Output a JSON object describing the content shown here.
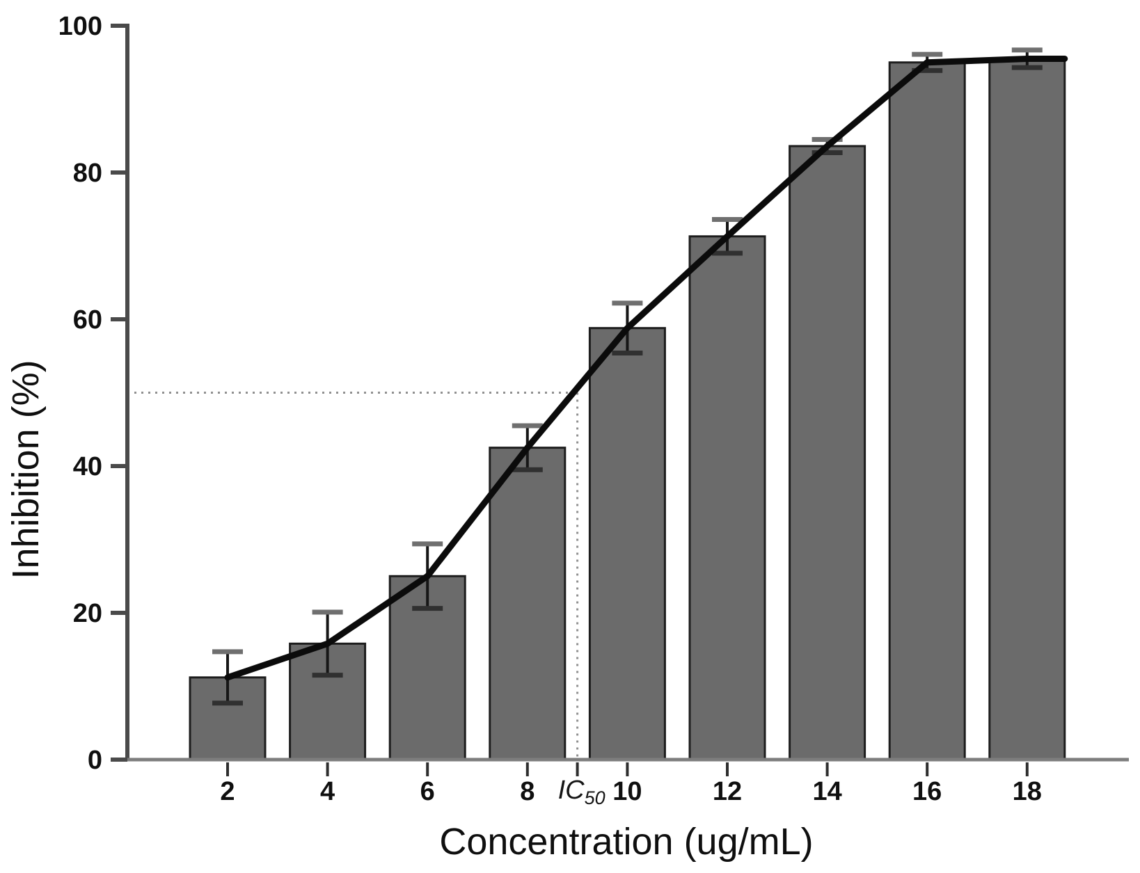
{
  "figure": {
    "xlabel": "Concentration (ug/mL)",
    "ylabel": "Inhibition (%)",
    "ic50_label": {
      "base": "IC",
      "sub": "50"
    }
  },
  "chart_data": {
    "type": "bar",
    "title": "",
    "xlabel": "Concentration (ug/mL)",
    "ylabel": "Inhibition (%)",
    "categories": [
      "2",
      "4",
      "6",
      "8",
      "10",
      "12",
      "14",
      "16",
      "18"
    ],
    "values": [
      11.2,
      15.8,
      25.0,
      42.5,
      58.8,
      71.3,
      83.6,
      95.0,
      95.5
    ],
    "error_bars": [
      3.5,
      4.3,
      4.4,
      3.0,
      3.4,
      2.3,
      0.9,
      1.1,
      1.2
    ],
    "yticks": [
      0,
      20,
      40,
      60,
      80,
      100
    ],
    "ylim": [
      0,
      100
    ],
    "grid": false,
    "legend": false,
    "trend_line_through_bar_tops": true,
    "bar_color": "#6b6b6b",
    "bar_edge_color": "#1d1d1d",
    "trend_line_color": "#0b0b0b",
    "annotations": {
      "ic50_x": 9.0,
      "ic50_y": 50,
      "ic50_text": "IC50",
      "dotted_guide_lines": true
    }
  }
}
